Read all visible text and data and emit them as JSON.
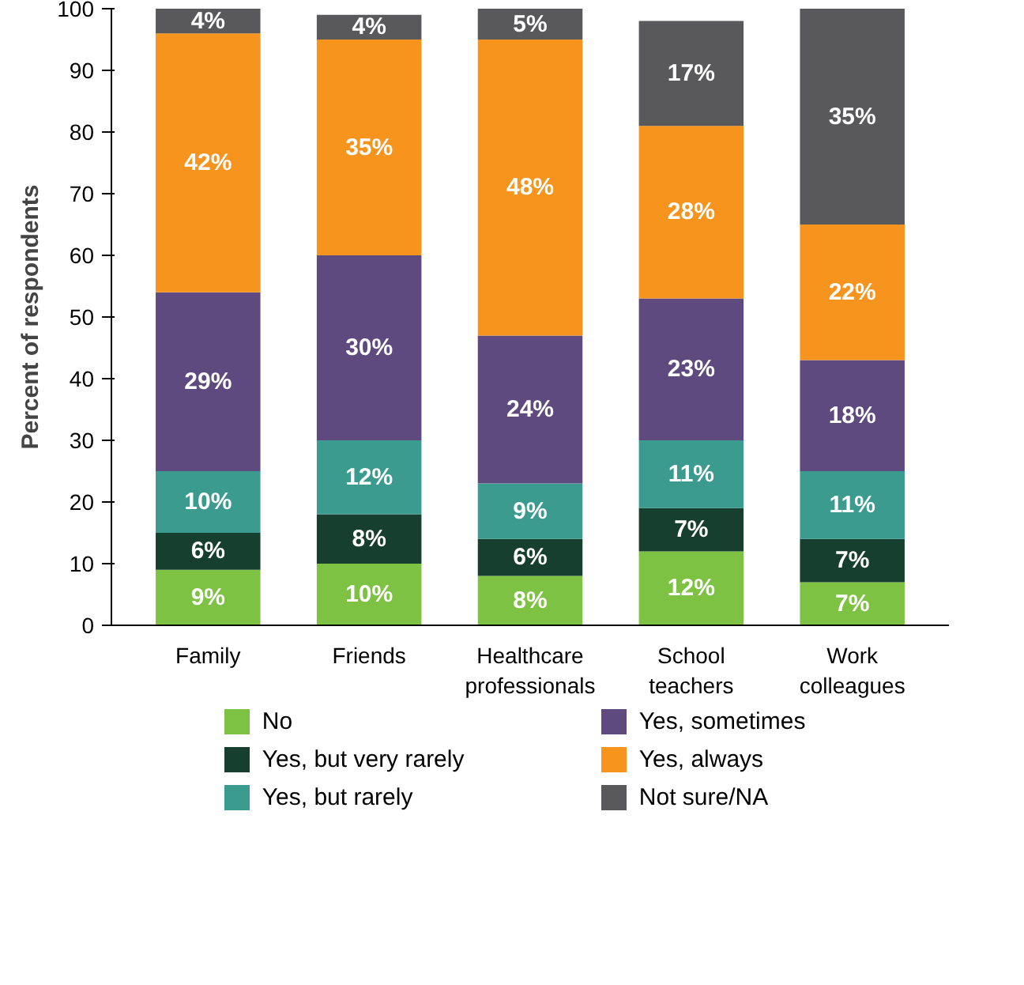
{
  "chart_data": {
    "type": "bar",
    "stacked": true,
    "ylabel": "Percent of respondents",
    "categories": [
      "Family",
      "Friends",
      "Healthcare professionals",
      "School teachers",
      "Work colleagues"
    ],
    "series": [
      {
        "name": "No",
        "color": "#7dc242",
        "values": [
          9,
          10,
          8,
          12,
          7
        ],
        "value_labels": [
          "9%",
          "10%",
          "8%",
          "12%",
          "7%"
        ]
      },
      {
        "name": "Yes, but very rarely",
        "color": "#173f2f",
        "values": [
          6,
          8,
          6,
          7,
          7
        ],
        "value_labels": [
          "6%",
          "8%",
          "6%",
          "7%",
          "7%"
        ]
      },
      {
        "name": "Yes, but rarely",
        "color": "#3a9b8e",
        "values": [
          10,
          12,
          9,
          11,
          11
        ],
        "value_labels": [
          "10%",
          "12%",
          "9%",
          "11%",
          "11%"
        ]
      },
      {
        "name": "Yes, sometimes",
        "color": "#5f4a80",
        "values": [
          29,
          30,
          24,
          23,
          18
        ],
        "value_labels": [
          "29%",
          "30%",
          "24%",
          "23%",
          "18%"
        ]
      },
      {
        "name": "Yes, always",
        "color": "#f7941d",
        "values": [
          42,
          35,
          48,
          28,
          22
        ],
        "value_labels": [
          "42%",
          "35%",
          "48%",
          "28%",
          "22%"
        ]
      },
      {
        "name": "Not sure/NA",
        "color": "#59595b",
        "values": [
          4,
          4,
          5,
          17,
          35
        ],
        "value_labels": [
          "4%",
          "4%",
          "5%",
          "17%",
          "35%"
        ]
      }
    ],
    "ylim": [
      0,
      100
    ],
    "yticks": [
      0,
      10,
      20,
      30,
      40,
      50,
      60,
      70,
      80,
      90,
      100
    ],
    "grid": false,
    "legend": "bottom"
  }
}
